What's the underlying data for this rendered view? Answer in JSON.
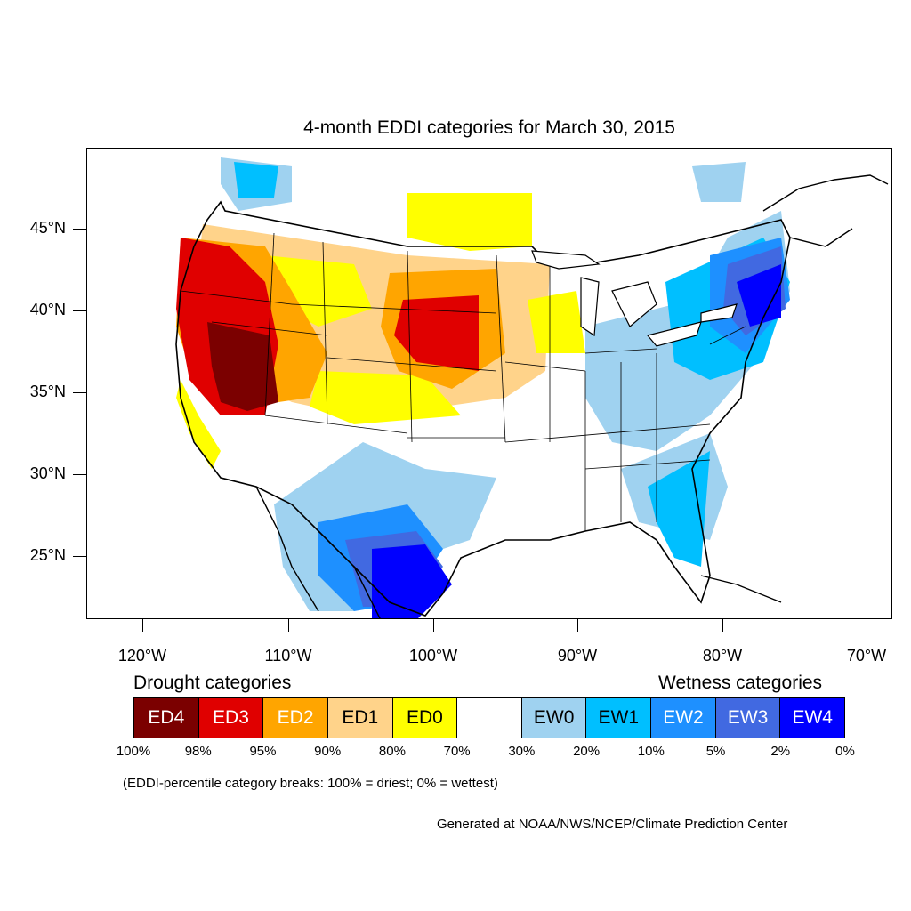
{
  "title": "4-month EDDI categories for March 30, 2015",
  "lat_labels": [
    "45°N",
    "40°N",
    "35°N",
    "30°N",
    "25°N"
  ],
  "lon_labels": [
    "120°W",
    "110°W",
    "100°W",
    "90°W",
    "80°W",
    "70°W"
  ],
  "legend": {
    "drought_heading": "Drought categories",
    "wetness_heading": "Wetness categories",
    "categories": [
      {
        "label": "ED4",
        "color": "#7b0000",
        "text_color": "#ffffff"
      },
      {
        "label": "ED3",
        "color": "#e00000",
        "text_color": "#ffffff"
      },
      {
        "label": "ED2",
        "color": "#ffa500",
        "text_color": "#ffffff"
      },
      {
        "label": "ED1",
        "color": "#ffd38a",
        "text_color": "#000000"
      },
      {
        "label": "ED0",
        "color": "#ffff00",
        "text_color": "#000000"
      },
      {
        "label": "",
        "color": "#ffffff",
        "text_color": "#000000"
      },
      {
        "label": "EW0",
        "color": "#9fd2f0",
        "text_color": "#000000"
      },
      {
        "label": "EW1",
        "color": "#00bfff",
        "text_color": "#000000"
      },
      {
        "label": "EW2",
        "color": "#1e90ff",
        "text_color": "#ffffff"
      },
      {
        "label": "EW3",
        "color": "#4169e1",
        "text_color": "#ffffff"
      },
      {
        "label": "EW4",
        "color": "#0000ff",
        "text_color": "#ffffff"
      }
    ],
    "percentiles": [
      "100%",
      "98%",
      "95%",
      "90%",
      "80%",
      "70%",
      "30%",
      "20%",
      "10%",
      "5%",
      "2%",
      "0%"
    ]
  },
  "breaks_note": "(EDDI-percentile category breaks: 100% = driest; 0% = wettest)",
  "credit": "Generated at NOAA/NWS/NCEP/Climate Prediction Center"
}
